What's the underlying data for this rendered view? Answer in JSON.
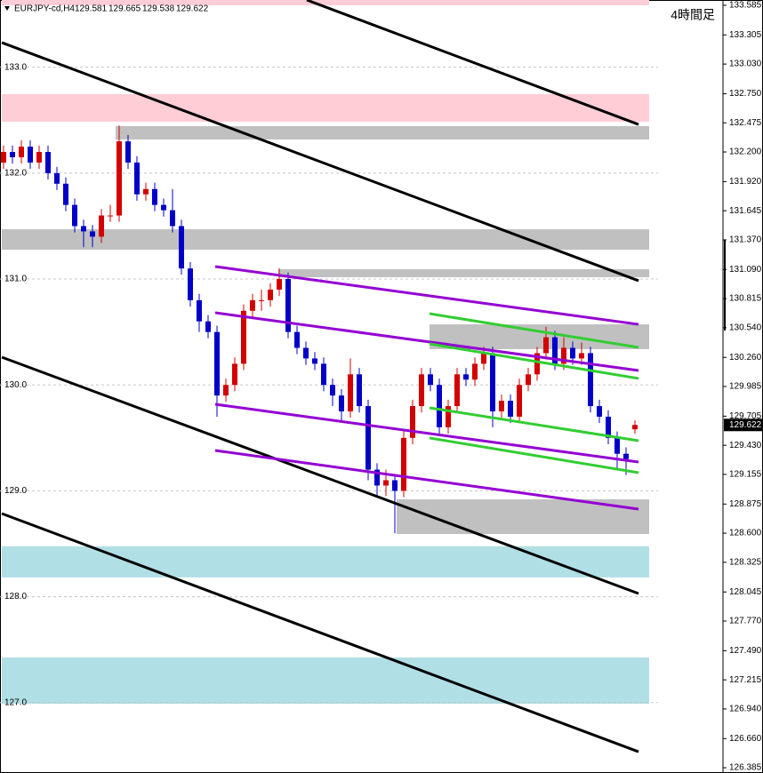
{
  "chart_data": {
    "type": "candlestick",
    "symbol": "EURJPY-cd,H4",
    "timeframe_label": "4時間足",
    "up_color": "#d40000",
    "down_color": "#0000c8",
    "xlim": [
      -0.4,
      80.8
    ],
    "ylim": [
      126.352,
      133.635
    ],
    "yticks": [
      133.585,
      133.305,
      {
        "value": 133.03,
        "label": "133.030"
      },
      {
        "value": 132.75,
        "label": "132.750"
      },
      132.475,
      {
        "value": 132.2,
        "label": "132.200"
      },
      {
        "value": 131.92,
        "label": "131.920"
      },
      131.645,
      {
        "value": 131.37,
        "label": "131.370"
      },
      {
        "value": 131.09,
        "label": "131.090"
      },
      130.815,
      {
        "value": 130.54,
        "label": "130.540"
      },
      {
        "value": 130.26,
        "label": "130.260"
      },
      129.985,
      129.705,
      {
        "value": 129.43,
        "label": "129.430"
      },
      129.155,
      128.875,
      {
        "value": 128.6,
        "label": "128.600"
      },
      128.325,
      128.045,
      {
        "value": 127.77,
        "label": "127.770"
      },
      {
        "value": 127.49,
        "label": "127.490"
      },
      127.215,
      {
        "value": 126.94,
        "label": "126.940"
      },
      {
        "value": 126.66,
        "label": "126.660"
      },
      126.385
    ],
    "inner_yticks": [
      {
        "value": 133,
        "label": "133.0"
      },
      {
        "value": 132,
        "label": "132.0"
      },
      {
        "value": 131,
        "label": "131.0"
      },
      {
        "value": 130,
        "label": "130.0"
      },
      {
        "value": 129,
        "label": "129.0"
      },
      {
        "value": 128,
        "label": "128.0"
      },
      {
        "value": 127,
        "label": "127.0"
      }
    ],
    "open": [
      132.1,
      132.2,
      132.15,
      132.25,
      132.1,
      132.2,
      132.0,
      131.9,
      131.7,
      131.5,
      131.45,
      131.4,
      131.6,
      131.6,
      132.3,
      132.1,
      131.8,
      131.85,
      131.7,
      131.65,
      131.5,
      131.1,
      130.8,
      130.6,
      130.5,
      129.9,
      130.0,
      130.2,
      130.7,
      130.8,
      130.8,
      130.9,
      131.0,
      130.5,
      130.35,
      130.25,
      130.2,
      130.0,
      129.9,
      129.75,
      130.1,
      129.8,
      129.2,
      129.05,
      129.1,
      129.0,
      129.5,
      129.8,
      130.1,
      130.0,
      129.6,
      129.8,
      130.1,
      130.05,
      130.2,
      130.3,
      129.75,
      129.85,
      129.7,
      130.0,
      130.1,
      130.3,
      130.45,
      130.2,
      130.35,
      130.25,
      130.3,
      129.8,
      129.7,
      129.5,
      129.35,
      129.581
    ],
    "high": [
      132.26,
      132.26,
      132.31,
      132.31,
      132.26,
      132.26,
      132.06,
      131.96,
      131.76,
      131.56,
      131.51,
      131.66,
      131.7,
      132.45,
      132.36,
      132.16,
      131.91,
      131.91,
      131.76,
      131.85,
      131.56,
      131.16,
      130.86,
      130.66,
      130.56,
      130.06,
      130.26,
      130.76,
      130.86,
      130.9,
      130.96,
      131.1,
      131.06,
      130.56,
      130.41,
      130.31,
      130.26,
      130.06,
      129.96,
      130.25,
      130.16,
      129.86,
      129.26,
      129.2,
      129.16,
      129.56,
      129.86,
      130.16,
      130.16,
      130.06,
      129.86,
      130.16,
      130.16,
      130.26,
      130.36,
      130.36,
      129.91,
      129.91,
      130.06,
      130.16,
      130.36,
      130.55,
      130.51,
      130.45,
      130.41,
      130.4,
      130.36,
      129.86,
      129.76,
      129.56,
      129.41,
      129.665
    ],
    "low": [
      132.04,
      132.09,
      132.09,
      132.04,
      132.04,
      131.94,
      131.84,
      131.64,
      131.44,
      131.3,
      131.3,
      131.34,
      131.54,
      131.54,
      132.04,
      131.74,
      131.74,
      131.64,
      131.59,
      131.44,
      131.04,
      130.74,
      130.5,
      130.44,
      129.7,
      129.84,
      129.94,
      130.14,
      130.64,
      130.7,
      130.74,
      130.84,
      130.44,
      130.29,
      130.19,
      130.14,
      129.94,
      129.8,
      129.65,
      129.69,
      129.74,
      129.1,
      128.95,
      128.95,
      128.6,
      128.94,
      129.44,
      129.74,
      129.94,
      129.54,
      129.54,
      129.74,
      129.99,
      129.99,
      130.14,
      129.6,
      129.69,
      129.64,
      129.64,
      129.94,
      130.04,
      130.24,
      130.14,
      130.14,
      130.19,
      130.19,
      129.74,
      129.64,
      129.44,
      129.2,
      129.15,
      129.538
    ],
    "close": [
      132.2,
      132.15,
      132.25,
      132.1,
      132.2,
      132.0,
      131.9,
      131.7,
      131.5,
      131.45,
      131.4,
      131.6,
      131.6,
      132.3,
      132.1,
      131.8,
      131.85,
      131.7,
      131.65,
      131.5,
      131.1,
      130.8,
      130.6,
      130.5,
      129.9,
      130.0,
      130.2,
      130.7,
      130.8,
      130.8,
      130.9,
      131.0,
      130.5,
      130.35,
      130.25,
      130.2,
      130.0,
      129.9,
      129.75,
      130.1,
      129.8,
      129.2,
      129.05,
      129.1,
      129.0,
      129.5,
      129.8,
      130.1,
      130.0,
      129.6,
      129.8,
      130.1,
      130.05,
      130.2,
      130.3,
      129.75,
      129.85,
      129.7,
      130.0,
      130.1,
      130.3,
      130.45,
      130.2,
      130.35,
      130.25,
      130.3,
      129.8,
      129.7,
      129.5,
      129.35,
      129.3,
      129.622
    ],
    "zones": [
      {
        "color": "#ffcdd6",
        "x": [
          -0.2,
          72.6
        ],
        "y": [
          133.635,
          133.585
        ]
      },
      {
        "color": "#ffcdd6",
        "x": [
          -0.2,
          72.6
        ],
        "y": [
          132.746,
          132.486
        ]
      },
      {
        "color": "#c0c0c0",
        "x": [
          12.6,
          72.6
        ],
        "y": [
          132.444,
          132.318
        ]
      },
      {
        "color": "#c0c0c0",
        "x": [
          -0.2,
          72.6
        ],
        "y": [
          131.47,
          131.277
        ]
      },
      {
        "color": "#c0c0c0",
        "x": [
          30.9,
          72.6
        ],
        "y": [
          131.093,
          131.017
        ]
      },
      {
        "color": "#c0c0c0",
        "x": [
          47.9,
          72.6
        ],
        "y": [
          130.572,
          130.338
        ]
      },
      {
        "color": "#c0c0c0",
        "x": [
          44.2,
          72.6
        ],
        "y": [
          128.92,
          128.592
        ]
      },
      {
        "color": "#b0dfe5",
        "x": [
          -0.2,
          72.6
        ],
        "y": [
          128.476,
          128.182
        ]
      },
      {
        "color": "#b0dfe5",
        "x": [
          -0.2,
          72.6
        ],
        "y": [
          127.426,
          126.989
        ]
      }
    ],
    "trendlines": [
      {
        "color": "#000000",
        "x": [
          34.1,
          71.4
        ],
        "y": [
          133.635,
          132.46
        ]
      },
      {
        "color": "#000000",
        "x": [
          -0.2,
          71.4
        ],
        "y": [
          133.233,
          130.984
        ]
      },
      {
        "color": "#000000",
        "x": [
          -0.2,
          71.4
        ],
        "y": [
          130.262,
          128.03
        ]
      },
      {
        "color": "#000000",
        "x": [
          -0.2,
          71.4
        ],
        "y": [
          128.785,
          126.536
        ]
      },
      {
        "color": "#9400d3",
        "x": [
          23.8,
          71.4
        ],
        "y": [
          131.118,
          130.572
        ]
      },
      {
        "color": "#9400d3",
        "x": [
          23.8,
          71.4
        ],
        "y": [
          130.682,
          130.136
        ]
      },
      {
        "color": "#9400d3",
        "x": [
          23.8,
          71.4
        ],
        "y": [
          129.817,
          129.272
        ]
      },
      {
        "color": "#9400d3",
        "x": [
          23.8,
          71.4
        ],
        "y": [
          129.381,
          128.827
        ]
      },
      {
        "color": "#32cd32",
        "x": [
          47.9,
          71.4
        ],
        "y": [
          130.673,
          130.354
        ]
      },
      {
        "color": "#32cd32",
        "x": [
          47.9,
          71.4
        ],
        "y": [
          130.388,
          130.061
        ]
      },
      {
        "color": "#32cd32",
        "x": [
          47.9,
          71.4
        ],
        "y": [
          129.784,
          129.473
        ]
      },
      {
        "color": "#32cd32",
        "x": [
          47.9,
          71.4
        ],
        "y": [
          129.499,
          129.171
        ]
      }
    ]
  }
}
